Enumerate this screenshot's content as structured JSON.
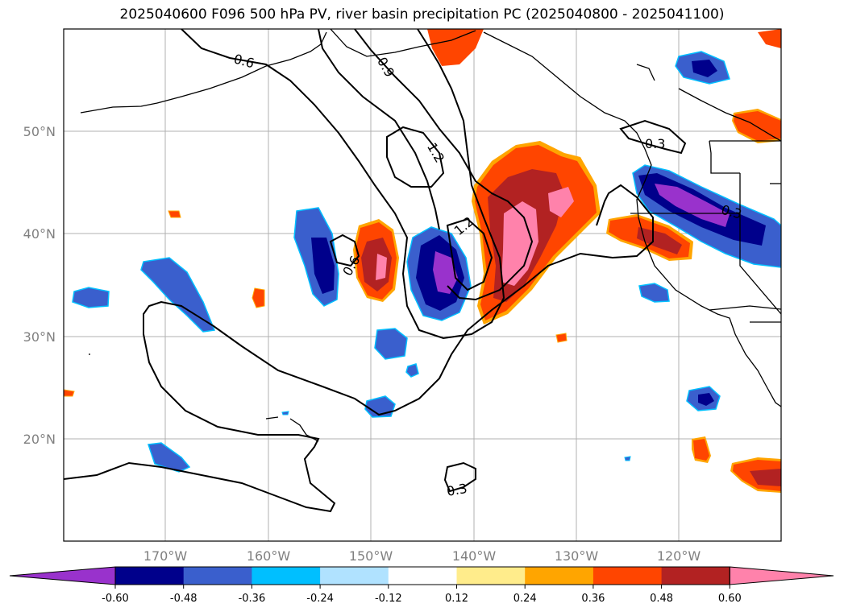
{
  "title": "2025040600 F096 500 hPa PV, river basin precipitation PC (2025040800 - 2025041100)",
  "map": {
    "lat_labels": [
      "50°N",
      "40°N",
      "30°N",
      "20°N"
    ],
    "lon_labels": [
      "170°W",
      "160°W",
      "150°W",
      "140°W",
      "130°W",
      "120°W"
    ],
    "gridlines": true
  },
  "pv_contour_labels": [
    "0.6",
    "0.9",
    "1.2",
    "1.2",
    "0.6",
    "0.3",
    "0.3",
    "0.3"
  ],
  "colorbar": {
    "ticks": [
      "-0.60",
      "-0.48",
      "-0.36",
      "-0.24",
      "-0.12",
      "0.12",
      "0.24",
      "0.36",
      "0.48",
      "0.60"
    ],
    "colors": [
      "#9932CC",
      "#00008B",
      "#3A5FCD",
      "#00BFFF",
      "#B0E2FF",
      "#FFFFFF",
      "#FFEC8B",
      "#FFA500",
      "#FF4500",
      "#B22222",
      "#FF82AB"
    ],
    "extend": "both"
  }
}
